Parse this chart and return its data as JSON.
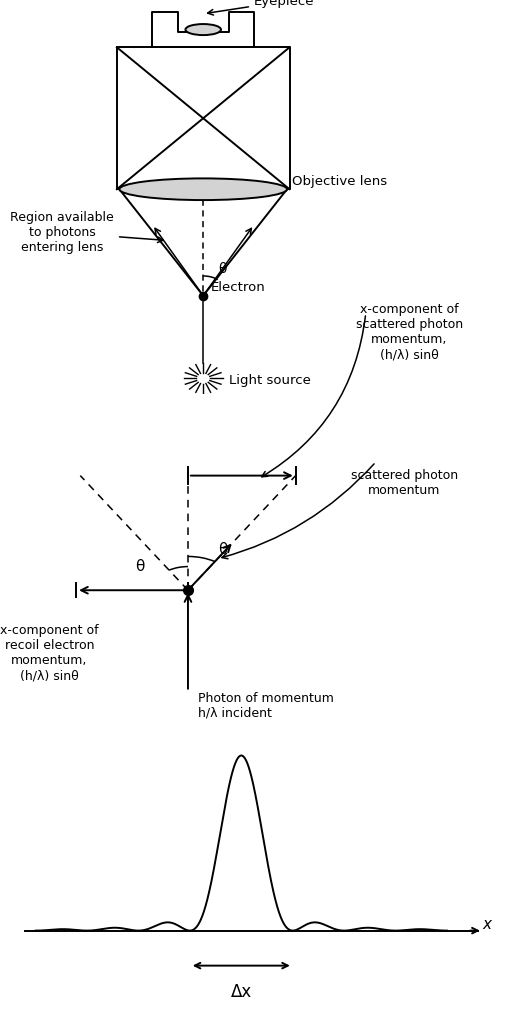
{
  "bg_color": "#ffffff",
  "line_color": "#000000",
  "fig_width": 5.08,
  "fig_height": 10.24,
  "dpi": 100,
  "panel1": {
    "eyepiece_label": "Eyepiece",
    "objective_lens_label": "Objective lens",
    "electron_label": "Electron",
    "region_label": "Region available\nto photons\nentering lens",
    "light_source_label": "Light source",
    "theta_label": "θ"
  },
  "panel2": {
    "x_comp_scattered_label": "x-component of\nscattered photon\nmomentum,\n(h/λ) sinθ",
    "scattered_photon_label": "scattered photon\nmomentum",
    "photon_incident_label": "Photon of momentum\nh/λ incident",
    "x_comp_recoil_label": "x-component of\nrecoil electron\nmomentum,\n(h/λ) sinθ",
    "theta_label": "θ"
  },
  "panel3": {
    "x_label": "x",
    "delta_x_label": "Δx"
  }
}
